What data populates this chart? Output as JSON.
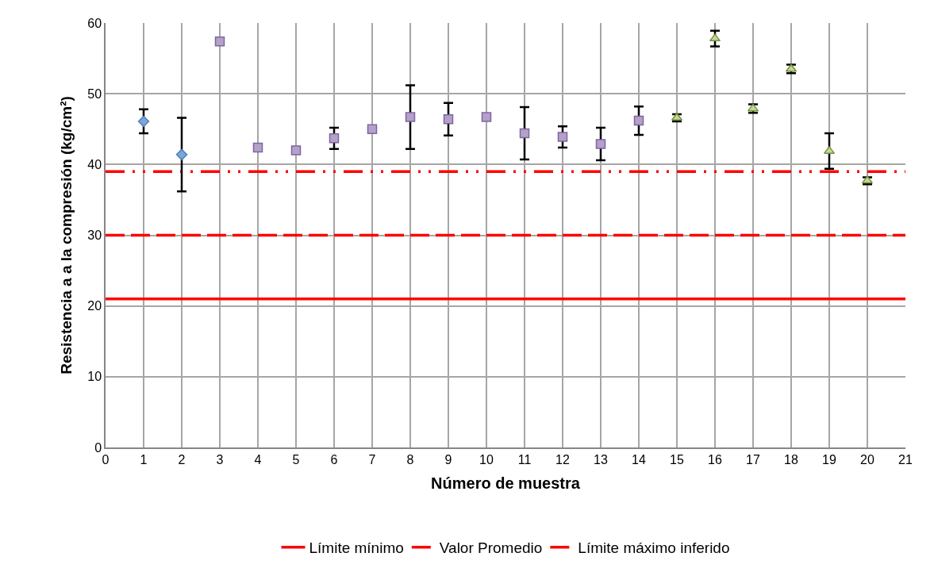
{
  "chart_data": {
    "type": "scatter",
    "xlabel": "Número de muestra",
    "ylabel": "Resistencia a a la compresión (kg/cm²)",
    "xlim": [
      0,
      21
    ],
    "xticks": [
      0,
      1,
      2,
      3,
      4,
      5,
      6,
      7,
      8,
      9,
      10,
      11,
      12,
      13,
      14,
      15,
      16,
      17,
      18,
      19,
      20,
      21
    ],
    "ylim": [
      0,
      60
    ],
    "yticks": [
      0,
      10,
      20,
      30,
      40,
      50,
      60
    ],
    "grid": true,
    "legend": "bottom",
    "series": [
      {
        "color": "#7ba7d8",
        "marker": "diamond",
        "x": [
          1,
          2
        ],
        "values": [
          46.1,
          41.4
        ],
        "errors": [
          1.7,
          5.2
        ]
      },
      {
        "color": "#b3a2c7",
        "marker": "square",
        "x": [
          3,
          4,
          5,
          6,
          7,
          8,
          9,
          10,
          11,
          12,
          13,
          14
        ],
        "values": [
          57.4,
          42.4,
          42.0,
          43.7,
          45.0,
          46.7,
          46.4,
          46.7,
          44.4,
          43.9,
          42.9,
          46.2
        ],
        "errors": [
          null,
          null,
          null,
          1.5,
          null,
          4.5,
          2.3,
          null,
          3.7,
          1.5,
          2.3,
          2.0
        ]
      },
      {
        "color": "#c3d69b",
        "marker": "triangle",
        "x": [
          15,
          16,
          17,
          18,
          19,
          20
        ],
        "values": [
          46.6,
          57.8,
          47.9,
          53.5,
          41.9,
          37.7
        ],
        "errors": [
          0.5,
          1.1,
          0.6,
          0.6,
          2.5,
          0.5
        ]
      }
    ],
    "ref_lines": [
      {
        "axis": "y",
        "value": 21,
        "label": "Límite mínimo",
        "color": "#ff0000",
        "line_style": "solid"
      },
      {
        "axis": "y",
        "value": 30,
        "label": "Valor Promedio",
        "color": "#ff0000",
        "line_style": "dashed"
      },
      {
        "axis": "y",
        "value": 39,
        "label": "Límite máximo inferido",
        "color": "#ff0000",
        "line_style": "dotted"
      }
    ]
  }
}
